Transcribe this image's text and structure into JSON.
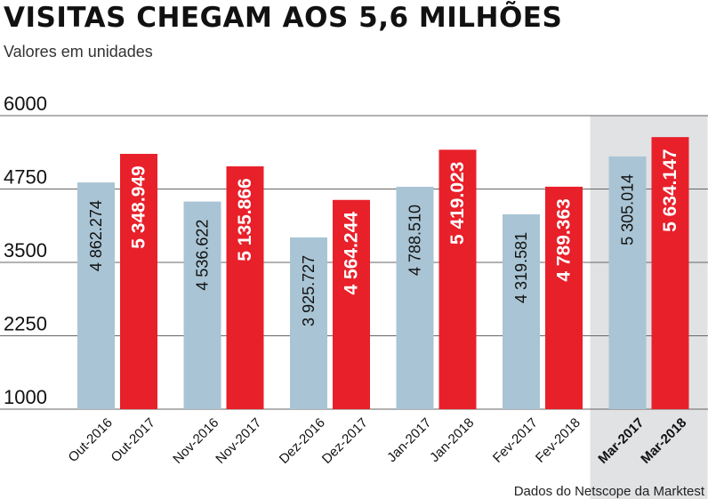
{
  "title": "VISITAS CHEGAM AOS 5,6 MILHÕES",
  "subtitle": "Valores em unidades",
  "source": "Dados do Netscope da Marktest",
  "colors": {
    "previous_year": "#a9c4d4",
    "current_year": "#e8202a",
    "highlight_bg": "#e1e2e4",
    "axis_text": "#111111",
    "grid": "#666666"
  },
  "chart_data": {
    "type": "bar",
    "yticks": [
      "6000",
      "4750",
      "3500",
      "2250",
      "1000"
    ],
    "ylim": [
      1000,
      6000
    ],
    "grid": true,
    "units": "milhares",
    "highlight_group": 5,
    "groups": [
      {
        "bars": [
          {
            "category": "Out-2016",
            "value": 4862.274,
            "label": "4 862.274",
            "series": "previous"
          },
          {
            "category": "Out-2017",
            "value": 5348.949,
            "label": "5 348.949",
            "series": "current"
          }
        ]
      },
      {
        "bars": [
          {
            "category": "Nov-2016",
            "value": 4536.622,
            "label": "4 536.622",
            "series": "previous"
          },
          {
            "category": "Nov-2017",
            "value": 5135.866,
            "label": "5 135.866",
            "series": "current"
          }
        ]
      },
      {
        "bars": [
          {
            "category": "Dez-2016",
            "value": 3925.727,
            "label": "3 925.727",
            "series": "previous"
          },
          {
            "category": "Dez-2017",
            "value": 4564.244,
            "label": "4 564.244",
            "series": "current"
          }
        ]
      },
      {
        "bars": [
          {
            "category": "Jan-2017",
            "value": 4788.51,
            "label": "4 788.510",
            "series": "previous"
          },
          {
            "category": "Jan-2018",
            "value": 5419.023,
            "label": "5 419.023",
            "series": "current"
          }
        ]
      },
      {
        "bars": [
          {
            "category": "Fev-2017",
            "value": 4319.581,
            "label": "4 319.581",
            "series": "previous"
          },
          {
            "category": "Fev-2018",
            "value": 4789.363,
            "label": "4 789.363",
            "series": "current"
          }
        ]
      },
      {
        "bars": [
          {
            "category": "Mar-2017",
            "value": 5305.014,
            "label": "5 305.014",
            "series": "previous"
          },
          {
            "category": "Mar-2018",
            "value": 5634.147,
            "label": "5 634.147",
            "series": "current"
          }
        ]
      }
    ]
  }
}
